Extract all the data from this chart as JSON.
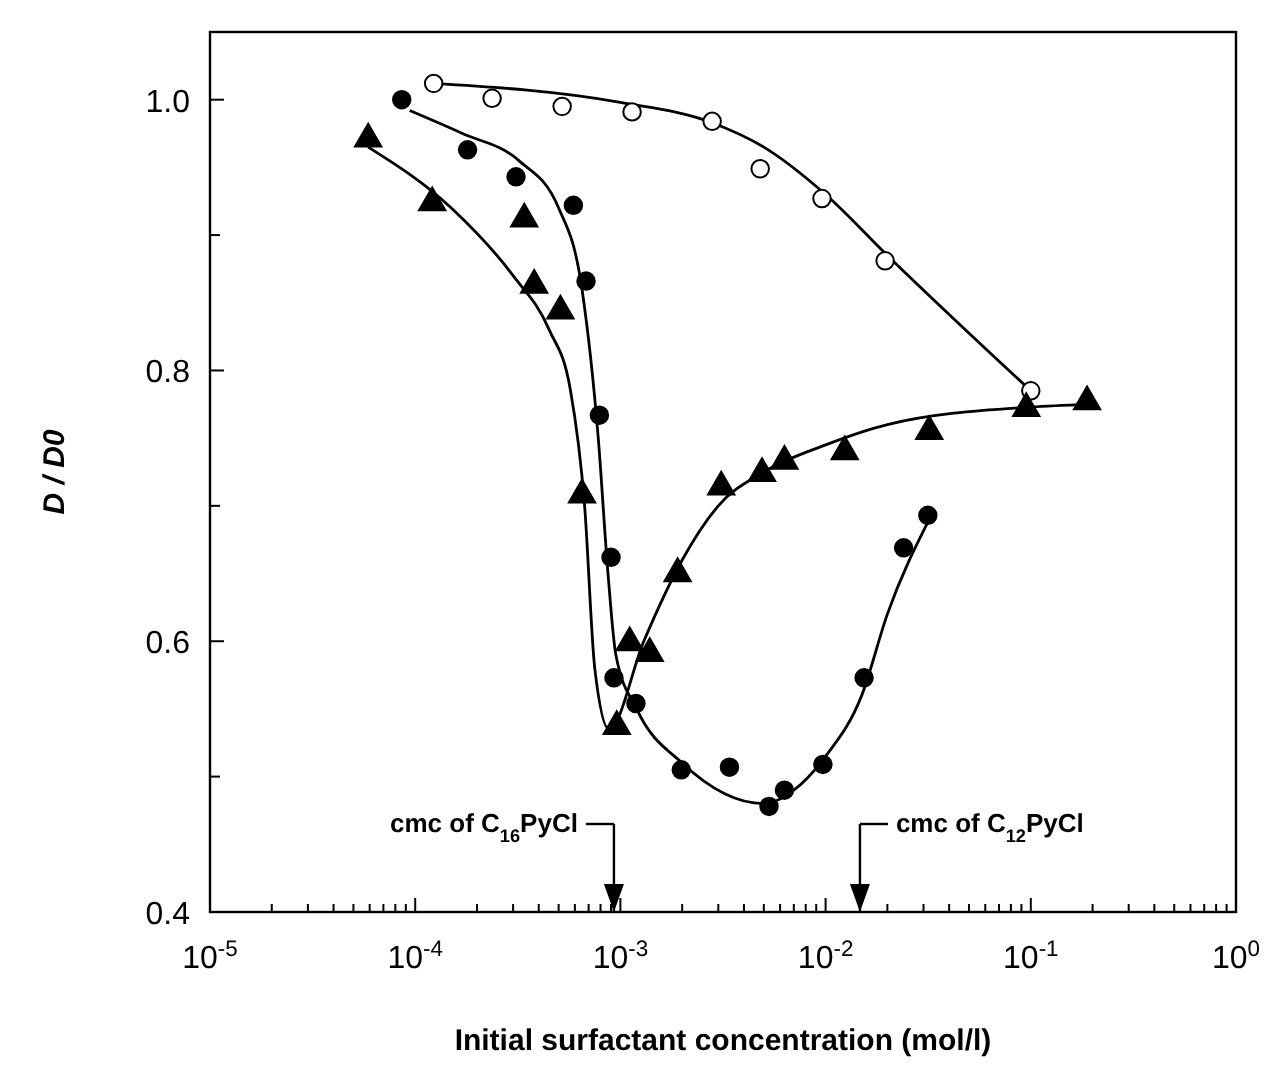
{
  "chart_data": {
    "type": "scatter",
    "xlabel": "Initial surfactant concentration (mol/l)",
    "ylabel": "D / D0",
    "log": "x",
    "xlim": [
      1e-05,
      1
    ],
    "ylim": [
      0.4,
      1.05
    ],
    "xticks": [
      {
        "value": 1e-05,
        "label": "10$^{-5}$"
      },
      {
        "value": 2e-05,
        "label": null
      },
      {
        "value": 3e-05,
        "label": null
      },
      {
        "value": 4e-05,
        "label": null
      },
      {
        "value": 5e-05,
        "label": null
      },
      {
        "value": 6e-05,
        "label": null
      },
      {
        "value": 7e-05,
        "label": null
      },
      {
        "value": 8e-05,
        "label": null
      },
      {
        "value": 9e-05,
        "label": null
      },
      {
        "value": 0.0001,
        "label": "10$^{-4}$"
      },
      {
        "value": 0.0002,
        "label": null
      },
      {
        "value": 0.0003,
        "label": null
      },
      {
        "value": 0.0004,
        "label": null
      },
      {
        "value": 0.0005,
        "label": null
      },
      {
        "value": 0.0006,
        "label": null
      },
      {
        "value": 0.0007,
        "label": null
      },
      {
        "value": 0.0008,
        "label": null
      },
      {
        "value": 0.0009,
        "label": null
      },
      {
        "value": 0.001,
        "label": "10$^{-3}$"
      },
      {
        "value": 0.002,
        "label": null
      },
      {
        "value": 0.003,
        "label": null
      },
      {
        "value": 0.004,
        "label": null
      },
      {
        "value": 0.005,
        "label": null
      },
      {
        "value": 0.006,
        "label": null
      },
      {
        "value": 0.007,
        "label": null
      },
      {
        "value": 0.008,
        "label": null
      },
      {
        "value": 0.009,
        "label": null
      },
      {
        "value": 0.01,
        "label": "10$^{-2}$"
      },
      {
        "value": 0.02,
        "label": null
      },
      {
        "value": 0.03,
        "label": null
      },
      {
        "value": 0.04,
        "label": null
      },
      {
        "value": 0.05,
        "label": null
      },
      {
        "value": 0.06,
        "label": null
      },
      {
        "value": 0.07,
        "label": null
      },
      {
        "value": 0.08,
        "label": null
      },
      {
        "value": 0.09,
        "label": null
      },
      {
        "value": 0.1,
        "label": "10$^{-1}$"
      },
      {
        "value": 0.2,
        "label": null
      },
      {
        "value": 0.3,
        "label": null
      },
      {
        "value": 0.4,
        "label": null
      },
      {
        "value": 0.5,
        "label": null
      },
      {
        "value": 0.6,
        "label": null
      },
      {
        "value": 0.7,
        "label": null
      },
      {
        "value": 0.8,
        "label": null
      },
      {
        "value": 0.9,
        "label": null
      },
      {
        "value": 1,
        "label": "10$^{0}$"
      }
    ],
    "yticks": [
      {
        "value": 0.4,
        "label": "0.4"
      },
      {
        "value": 0.5,
        "label": null
      },
      {
        "value": 0.6,
        "label": "0.6"
      },
      {
        "value": 0.7,
        "label": null
      },
      {
        "value": 0.8,
        "label": "0.8"
      },
      {
        "value": 0.9,
        "label": null
      },
      {
        "value": 1.0,
        "label": "1.0"
      }
    ],
    "series": [
      {
        "type": "line",
        "marker": "none",
        "color": "#000000",
        "x": [
          0.000123,
          0.001,
          0.0028,
          0.005,
          0.01,
          0.02,
          0.1
        ],
        "values": [
          1.012,
          0.998,
          0.983,
          0.965,
          0.93,
          0.885,
          0.785
        ]
      },
      {
        "type": "line",
        "marker": "none",
        "color": "#000000",
        "x": [
          9.4e-05,
          0.00017,
          0.00032,
          0.0005,
          0.00065,
          0.00078,
          0.00087,
          0.00095,
          0.0012,
          0.002,
          0.005,
          0.007,
          0.01,
          0.015,
          0.02,
          0.032
        ],
        "values": [
          0.992,
          0.975,
          0.955,
          0.92,
          0.86,
          0.75,
          0.65,
          0.59,
          0.55,
          0.51,
          0.48,
          0.49,
          0.515,
          0.56,
          0.62,
          0.69
        ]
      },
      {
        "type": "line",
        "marker": "none",
        "color": "#000000",
        "x": [
          5.9e-05,
          0.00015,
          0.0003,
          0.00045,
          0.00057,
          0.00067,
          0.00075,
          0.00088,
          0.0013,
          0.002,
          0.003,
          0.005,
          0.01,
          0.02,
          0.1,
          0.19
        ],
        "values": [
          0.965,
          0.92,
          0.87,
          0.83,
          0.786,
          0.699,
          0.58,
          0.535,
          0.6,
          0.66,
          0.7,
          0.725,
          0.745,
          0.76,
          0.773,
          0.775
        ]
      },
      {
        "type": "scatter",
        "marker": "circle",
        "color": "#ffffff",
        "x": [
          0.000123,
          0.000237,
          0.00052,
          0.00114,
          0.0028,
          0.0048,
          0.0096,
          0.0195,
          0.1
        ],
        "values": [
          1.012,
          1.001,
          0.995,
          0.991,
          0.984,
          0.949,
          0.927,
          0.881,
          0.785
        ]
      },
      {
        "type": "scatter",
        "marker": "circle",
        "color": "#000000",
        "x": [
          8.6e-05,
          0.00018,
          0.00031,
          0.00059,
          0.00068,
          0.00079,
          0.0009,
          0.00093,
          0.00119,
          0.00198,
          0.0034,
          0.0053,
          0.0063,
          0.0097,
          0.0154,
          0.024,
          0.0315
        ],
        "values": [
          1.0,
          0.963,
          0.943,
          0.922,
          0.866,
          0.767,
          0.662,
          0.573,
          0.554,
          0.505,
          0.507,
          0.478,
          0.49,
          0.509,
          0.573,
          0.669,
          0.693
        ]
      },
      {
        "type": "scatter",
        "marker": "triangle",
        "color": "#000000",
        "x": [
          5.9e-05,
          0.000121,
          0.00034,
          0.00038,
          0.00051,
          0.00065,
          0.00096,
          0.00111,
          0.00139,
          0.0019,
          0.0031,
          0.0049,
          0.0063,
          0.0124,
          0.032,
          0.095,
          0.188
        ],
        "values": [
          0.971,
          0.924,
          0.912,
          0.863,
          0.844,
          0.708,
          0.537,
          0.599,
          0.591,
          0.65,
          0.714,
          0.724,
          0.733,
          0.74,
          0.755,
          0.772,
          0.777
        ]
      }
    ],
    "ref_lines": [
      {
        "axis": "x",
        "value": 0.00093,
        "label": "cmc of C$_{16}$PyCl"
      },
      {
        "axis": "x",
        "value": 0.0147,
        "label": "cmc of C$_{12}$PyCl"
      }
    ]
  }
}
